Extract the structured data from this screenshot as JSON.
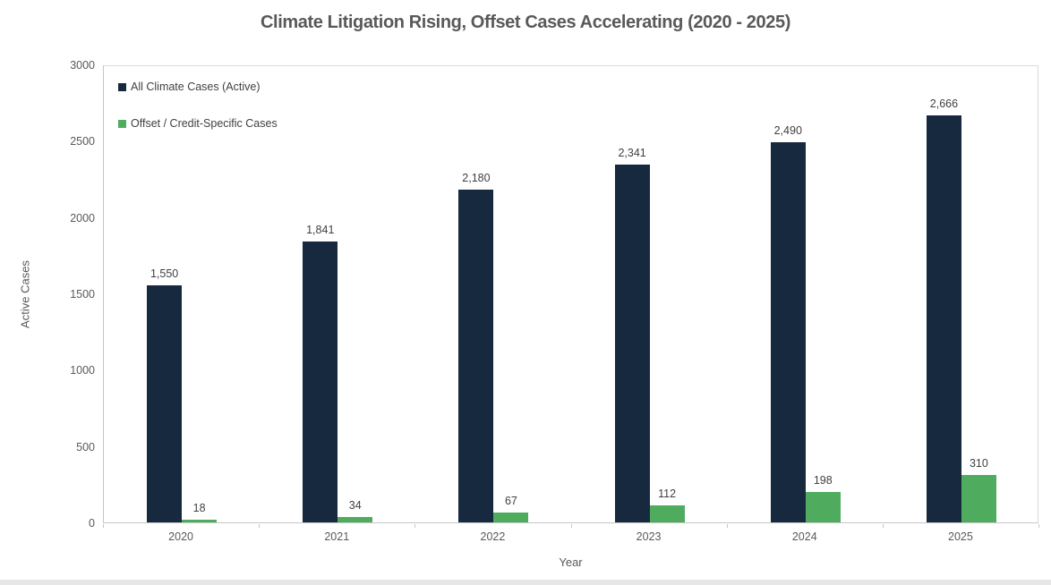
{
  "title": "Climate Litigation Rising, Offset Cases Accelerating (2020 - 2025)",
  "chart_data": {
    "type": "bar",
    "title": "Climate Litigation Rising, Offset Cases Accelerating (2020 - 2025)",
    "categories": [
      "2020",
      "2021",
      "2022",
      "2023",
      "2024",
      "2025"
    ],
    "series": [
      {
        "name": "All Climate Cases (Active)",
        "color": "#17293F",
        "values": [
          1550,
          1841,
          2180,
          2341,
          2490,
          2666
        ],
        "data_labels": [
          "1,550",
          "1,841",
          "2,180",
          "2,341",
          "2,490",
          "2,666"
        ]
      },
      {
        "name": "Offset / Credit-Specific Cases",
        "color": "#4FAC5E",
        "values": [
          18,
          34,
          67,
          112,
          198,
          310
        ],
        "data_labels": [
          "18",
          "34",
          "67",
          "112",
          "198",
          "310"
        ]
      }
    ],
    "xlabel": "Year",
    "ylabel": "Active Cases",
    "ylim": [
      0,
      3000
    ],
    "yticks": [
      0,
      500,
      1000,
      1500,
      2000,
      2500,
      3000
    ],
    "grid": false,
    "legend_position": "top-left-inside",
    "data_labels_visible": true
  },
  "colors": {
    "title_text": "#595959",
    "axis_text": "#595959",
    "data_label_text": "#404040",
    "plot_border": "#D9D9D9",
    "axis_line": "#C6C6C6",
    "bottom_strip": "#E7E7E7"
  }
}
